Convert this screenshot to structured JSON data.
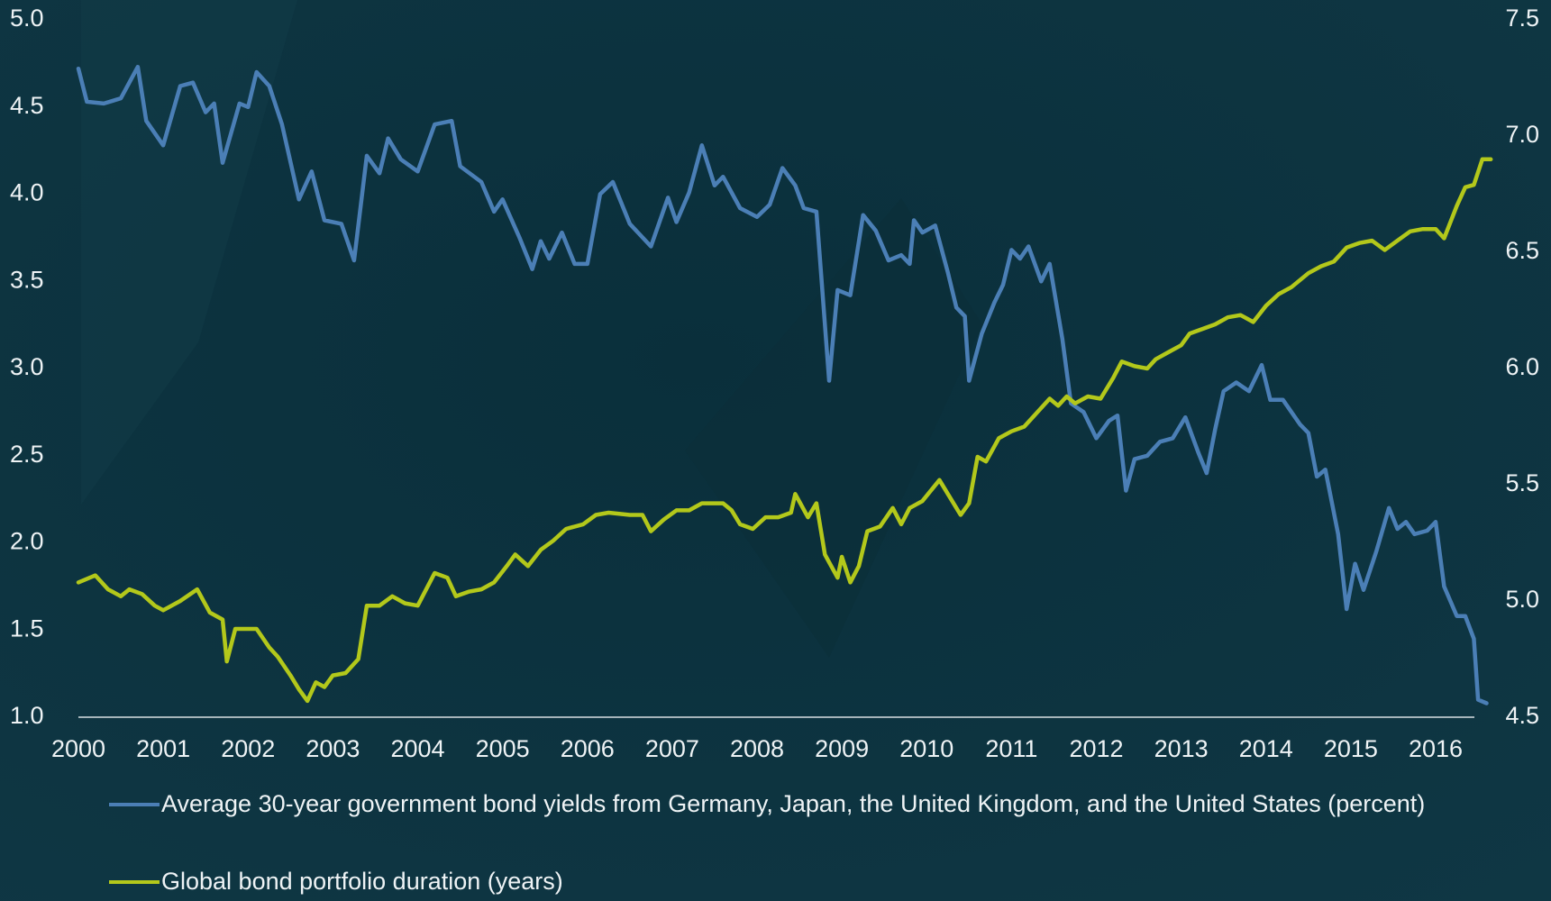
{
  "chart_data": {
    "type": "line",
    "xlim": [
      2000,
      2016.8
    ],
    "xticks": [
      2000,
      2001,
      2002,
      2003,
      2004,
      2005,
      2006,
      2007,
      2008,
      2009,
      2010,
      2011,
      2012,
      2013,
      2014,
      2015,
      2016
    ],
    "ylim": [
      1.0,
      5.0
    ],
    "yticks": [
      {
        "value": 1.0,
        "label": "1.0"
      },
      {
        "value": 1.5,
        "label": "1.5"
      },
      {
        "value": 2.0,
        "label": "2.0"
      },
      {
        "value": 2.5,
        "label": "2.5"
      },
      {
        "value": 3.0,
        "label": "3.0"
      },
      {
        "value": 3.5,
        "label": "3.5"
      },
      {
        "value": 4.0,
        "label": "4.0"
      },
      {
        "value": 4.5,
        "label": "4.5"
      },
      {
        "value": 5.0,
        "label": "5.0"
      }
    ],
    "y2lim": [
      4.5,
      7.5
    ],
    "y2ticks": [
      {
        "value": 4.5,
        "label": "4.5"
      },
      {
        "value": 5.0,
        "label": "5.0"
      },
      {
        "value": 5.5,
        "label": "5.5"
      },
      {
        "value": 6.0,
        "label": "6.0"
      },
      {
        "value": 6.5,
        "label": "6.5"
      },
      {
        "value": 7.0,
        "label": "7.0"
      },
      {
        "value": 7.5,
        "label": "7.5"
      }
    ],
    "grid": false,
    "series": [
      {
        "name": "Average 30-year government bond yields from Germany, Japan, the United Kingdom, and the United States (percent)",
        "color": "#4b7fb6",
        "axis": "y",
        "x": [
          2000.0,
          2000.1,
          2000.3,
          2000.5,
          2000.7,
          2000.8,
          2001.0,
          2001.2,
          2001.35,
          2001.5,
          2001.6,
          2001.7,
          2001.9,
          2002.0,
          2002.1,
          2002.25,
          2002.4,
          2002.6,
          2002.75,
          2002.9,
          2003.1,
          2003.25,
          2003.4,
          2003.55,
          2003.65,
          2003.8,
          2004.0,
          2004.2,
          2004.4,
          2004.5,
          2004.75,
          2004.9,
          2005.0,
          2005.2,
          2005.35,
          2005.45,
          2005.55,
          2005.7,
          2005.85,
          2006.0,
          2006.15,
          2006.3,
          2006.5,
          2006.75,
          2006.95,
          2007.05,
          2007.2,
          2007.35,
          2007.5,
          2007.6,
          2007.8,
          2008.0,
          2008.15,
          2008.3,
          2008.45,
          2008.55,
          2008.7,
          2008.85,
          2008.95,
          2009.1,
          2009.25,
          2009.4,
          2009.55,
          2009.7,
          2009.8,
          2009.85,
          2009.95,
          2010.1,
          2010.25,
          2010.35,
          2010.45,
          2010.5,
          2010.65,
          2010.8,
          2010.9,
          2011.0,
          2011.1,
          2011.2,
          2011.35,
          2011.45,
          2011.6,
          2011.7,
          2011.85,
          2012.0,
          2012.15,
          2012.25,
          2012.35,
          2012.45,
          2012.6,
          2012.75,
          2012.9,
          2013.05,
          2013.2,
          2013.3,
          2013.4,
          2013.5,
          2013.65,
          2013.8,
          2013.95,
          2014.05,
          2014.2,
          2014.4,
          2014.5,
          2014.6,
          2014.7,
          2014.85,
          2014.95,
          2015.05,
          2015.15,
          2015.3,
          2015.45,
          2015.55,
          2015.65,
          2015.75,
          2015.9,
          2016.0,
          2016.1,
          2016.25,
          2016.35,
          2016.45,
          2016.5,
          2016.6
        ],
        "values": [
          4.72,
          4.53,
          4.52,
          4.55,
          4.73,
          4.42,
          4.28,
          4.62,
          4.64,
          4.47,
          4.52,
          4.18,
          4.52,
          4.5,
          4.7,
          4.62,
          4.4,
          3.97,
          4.13,
          3.85,
          3.83,
          3.62,
          4.22,
          4.12,
          4.32,
          4.2,
          4.13,
          4.4,
          4.42,
          4.16,
          4.07,
          3.9,
          3.97,
          3.75,
          3.57,
          3.73,
          3.63,
          3.78,
          3.6,
          3.6,
          4.0,
          4.07,
          3.83,
          3.7,
          3.98,
          3.84,
          4.01,
          4.28,
          4.05,
          4.1,
          3.92,
          3.87,
          3.94,
          4.15,
          4.05,
          3.92,
          3.9,
          2.93,
          3.45,
          3.42,
          3.88,
          3.79,
          3.62,
          3.65,
          3.6,
          3.85,
          3.78,
          3.82,
          3.55,
          3.35,
          3.3,
          2.93,
          3.2,
          3.38,
          3.48,
          3.68,
          3.63,
          3.7,
          3.5,
          3.6,
          3.17,
          2.8,
          2.75,
          2.6,
          2.7,
          2.73,
          2.3,
          2.48,
          2.5,
          2.58,
          2.6,
          2.72,
          2.52,
          2.4,
          2.65,
          2.87,
          2.92,
          2.87,
          3.02,
          2.82,
          2.82,
          2.68,
          2.63,
          2.38,
          2.42,
          2.05,
          1.62,
          1.88,
          1.73,
          1.95,
          2.2,
          2.08,
          2.12,
          2.05,
          2.07,
          2.12,
          1.75,
          1.58,
          1.58,
          1.45,
          1.1,
          1.08
        ]
      },
      {
        "name": "Global bond portfolio duration (years)",
        "color": "#b3c81b",
        "axis": "y2",
        "x": [
          2000.0,
          2000.2,
          2000.35,
          2000.5,
          2000.6,
          2000.75,
          2000.9,
          2001.0,
          2001.2,
          2001.4,
          2001.55,
          2001.7,
          2001.75,
          2001.85,
          2001.95,
          2002.1,
          2002.25,
          2002.35,
          2002.5,
          2002.6,
          2002.7,
          2002.8,
          2002.9,
          2003.0,
          2003.15,
          2003.3,
          2003.4,
          2003.55,
          2003.7,
          2003.85,
          2004.0,
          2004.2,
          2004.35,
          2004.45,
          2004.6,
          2004.75,
          2004.9,
          2005.05,
          2005.15,
          2005.3,
          2005.45,
          2005.6,
          2005.75,
          2005.95,
          2006.1,
          2006.25,
          2006.5,
          2006.65,
          2006.75,
          2006.9,
          2007.05,
          2007.2,
          2007.35,
          2007.5,
          2007.6,
          2007.7,
          2007.8,
          2007.95,
          2008.1,
          2008.25,
          2008.4,
          2008.45,
          2008.6,
          2008.7,
          2008.8,
          2008.95,
          2009.0,
          2009.1,
          2009.2,
          2009.3,
          2009.45,
          2009.6,
          2009.7,
          2009.8,
          2009.95,
          2010.15,
          2010.25,
          2010.4,
          2010.5,
          2010.6,
          2010.7,
          2010.85,
          2011.0,
          2011.15,
          2011.3,
          2011.45,
          2011.55,
          2011.65,
          2011.75,
          2011.9,
          2012.05,
          2012.2,
          2012.3,
          2012.45,
          2012.6,
          2012.7,
          2012.85,
          2013.0,
          2013.1,
          2013.25,
          2013.4,
          2013.55,
          2013.7,
          2013.85,
          2014.0,
          2014.15,
          2014.3,
          2014.5,
          2014.65,
          2014.8,
          2014.95,
          2015.1,
          2015.25,
          2015.4,
          2015.55,
          2015.7,
          2015.85,
          2016.0,
          2016.1,
          2016.25,
          2016.35,
          2016.45,
          2016.55,
          2016.65
        ],
        "values": [
          5.08,
          5.11,
          5.05,
          5.02,
          5.05,
          5.03,
          4.98,
          4.96,
          5.0,
          5.05,
          4.95,
          4.92,
          4.74,
          4.88,
          4.88,
          4.88,
          4.8,
          4.76,
          4.68,
          4.62,
          4.57,
          4.65,
          4.63,
          4.68,
          4.69,
          4.75,
          4.98,
          4.98,
          5.02,
          4.99,
          4.98,
          5.12,
          5.1,
          5.02,
          5.04,
          5.05,
          5.08,
          5.15,
          5.2,
          5.15,
          5.22,
          5.26,
          5.31,
          5.33,
          5.37,
          5.38,
          5.37,
          5.37,
          5.3,
          5.35,
          5.39,
          5.39,
          5.42,
          5.42,
          5.42,
          5.39,
          5.33,
          5.31,
          5.36,
          5.36,
          5.38,
          5.46,
          5.36,
          5.42,
          5.2,
          5.1,
          5.19,
          5.08,
          5.15,
          5.3,
          5.32,
          5.4,
          5.33,
          5.4,
          5.43,
          5.52,
          5.46,
          5.37,
          5.42,
          5.62,
          5.6,
          5.7,
          5.73,
          5.75,
          5.81,
          5.87,
          5.84,
          5.88,
          5.85,
          5.88,
          5.87,
          5.96,
          6.03,
          6.01,
          6.0,
          6.04,
          6.07,
          6.1,
          6.15,
          6.17,
          6.19,
          6.22,
          6.23,
          6.2,
          6.27,
          6.32,
          6.35,
          6.41,
          6.44,
          6.46,
          6.52,
          6.54,
          6.55,
          6.51,
          6.55,
          6.59,
          6.6,
          6.6,
          6.56,
          6.7,
          6.78,
          6.79,
          6.9,
          6.9
        ]
      }
    ]
  }
}
